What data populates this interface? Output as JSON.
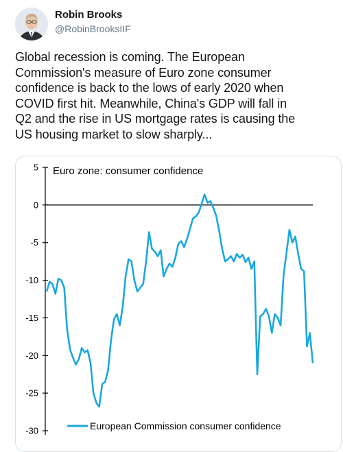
{
  "author": {
    "name": "Robin Brooks",
    "handle": "@RobinBrooksIIF",
    "avatar_icon": "profile-photo"
  },
  "tweet": {
    "lines": [
      "Global recession is coming. The European",
      "Commission's measure of Euro zone consumer",
      "confidence is back to the lows of early 2020 when",
      "COVID first hit. Meanwhile,  China's GDP will fall in",
      "Q2 and the rise in US mortgage rates is causing the",
      "US housing market to slow sharply..."
    ]
  },
  "chart_data": {
    "type": "line",
    "title": "Euro zone: consumer confidence",
    "xlabel": "",
    "ylabel": "",
    "ylim": [
      -30,
      5
    ],
    "yticks": [
      "5",
      "0",
      "-5",
      "-10",
      "-15",
      "-20",
      "-25",
      "-30"
    ],
    "grid": false,
    "legend_position": "bottom-right",
    "series": [
      {
        "name": "European Commission consumer confidence",
        "color": "#1aa7e0",
        "values": [
          -11.5,
          -10.2,
          -10.5,
          -11.8,
          -9.8,
          -10.0,
          -11.0,
          -16.5,
          -19.2,
          -20.3,
          -21.2,
          -20.5,
          -19.0,
          -19.6,
          -19.3,
          -21.0,
          -25.0,
          -26.3,
          -26.8,
          -23.8,
          -23.5,
          -22.0,
          -18.0,
          -15.2,
          -14.5,
          -16.0,
          -13.5,
          -9.5,
          -7.2,
          -7.5,
          -10.0,
          -11.5,
          -11.0,
          -10.5,
          -7.5,
          -3.6,
          -5.8,
          -6.2,
          -6.8,
          -6.0,
          -9.5,
          -8.5,
          -7.8,
          -8.2,
          -7.0,
          -5.2,
          -4.8,
          -5.6,
          -4.5,
          -3.2,
          -1.8,
          -1.5,
          -1.0,
          0.2,
          1.4,
          0.3,
          0.5,
          -0.4,
          -1.5,
          -3.5,
          -5.8,
          -7.5,
          -7.2,
          -6.8,
          -7.5,
          -6.5,
          -7.0,
          -6.6,
          -7.6,
          -7.0,
          -8.5,
          -7.5,
          -22.5,
          -14.8,
          -14.5,
          -13.8,
          -14.8,
          -17.0,
          -14.5,
          -15.0,
          -16.0,
          -9.3,
          -6.4,
          -3.3,
          -5.0,
          -4.2,
          -6.5,
          -8.5,
          -8.8,
          -18.8,
          -17.0,
          -21.0
        ]
      }
    ]
  }
}
